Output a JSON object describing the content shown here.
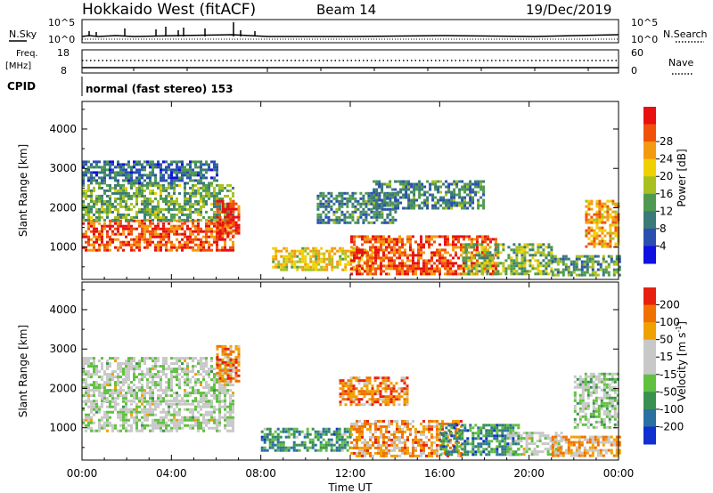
{
  "header": {
    "radar": "Hokkaido West (fitACF)",
    "beam": "Beam 14",
    "date": "19/Dec/2019"
  },
  "noise_panel": {
    "left_label": "N.Sky",
    "right_label": "N.Search",
    "tick_top": "10^5",
    "tick_bottom": "10^0"
  },
  "freq_panel": {
    "left_label_line1": "Freq.",
    "left_label_line2": "[MHz]",
    "left_tick_top": "18",
    "left_tick_bottom": "8",
    "right_label": "Nave",
    "right_tick_top": "60",
    "right_tick_bottom": "0"
  },
  "cpid": {
    "label": "CPID",
    "text": "normal (fast stereo) 153"
  },
  "x_axis": {
    "title": "Time UT",
    "ticks": [
      "00:00",
      "04:00",
      "08:00",
      "12:00",
      "16:00",
      "20:00",
      "00:00"
    ]
  },
  "chart_data": [
    {
      "type": "heatmap",
      "name": "power",
      "ylabel": "Slant Range [km]",
      "ylim": [
        180,
        4700
      ],
      "yticks": [
        1000,
        2000,
        3000,
        4000
      ],
      "x_range_hours": [
        0,
        24
      ],
      "colorbar": {
        "label": "Power [dB]",
        "ticks": [
          "4",
          "8",
          "12",
          "16",
          "20",
          "24",
          "28"
        ],
        "colors": [
          "#1010e0",
          "#2a4fb0",
          "#3a7a78",
          "#4f9a50",
          "#a8c020",
          "#f0d000",
          "#f49a10",
          "#f05008",
          "#e81010"
        ]
      },
      "regions": [
        {
          "t0": 0.0,
          "t1": 6.8,
          "r0": 900,
          "r1": 1700,
          "level": 0.85
        },
        {
          "t0": 0.0,
          "t1": 6.8,
          "r0": 1700,
          "r1": 2600,
          "level": 0.4
        },
        {
          "t0": 0.0,
          "t1": 6.0,
          "r0": 2600,
          "r1": 3200,
          "level": 0.25
        },
        {
          "t0": 6.0,
          "t1": 7.0,
          "r0": 1300,
          "r1": 2200,
          "level": 0.9
        },
        {
          "t0": 8.5,
          "t1": 13.0,
          "r0": 400,
          "r1": 1000,
          "level": 0.6
        },
        {
          "t0": 10.5,
          "t1": 14.0,
          "r0": 1600,
          "r1": 2400,
          "level": 0.3
        },
        {
          "t0": 12.0,
          "t1": 18.5,
          "r0": 300,
          "r1": 1300,
          "level": 0.85
        },
        {
          "t0": 13.0,
          "t1": 18.0,
          "r0": 2000,
          "r1": 2700,
          "level": 0.3
        },
        {
          "t0": 17.0,
          "t1": 21.0,
          "r0": 300,
          "r1": 1100,
          "level": 0.45
        },
        {
          "t0": 21.0,
          "t1": 24.0,
          "r0": 300,
          "r1": 800,
          "level": 0.35
        },
        {
          "t0": 22.5,
          "t1": 24.0,
          "r0": 1000,
          "r1": 2200,
          "level": 0.7
        }
      ]
    },
    {
      "type": "heatmap",
      "name": "velocity",
      "ylabel": "Slant Range [km]",
      "ylim": [
        180,
        4700
      ],
      "yticks": [
        1000,
        2000,
        3000,
        4000
      ],
      "x_range_hours": [
        0,
        24
      ],
      "colorbar": {
        "label": "Velocity [m s^-1]",
        "label_main": "Velocity [m s",
        "label_sup": "-1",
        "label_end": "]",
        "ticks": [
          "200",
          "100",
          "50",
          "15",
          "-15",
          "-50",
          "-100",
          "-200"
        ],
        "colors": [
          "#1030d0",
          "#2a70a0",
          "#3a9050",
          "#60c040",
          "#c8c8c8",
          "#c8c8c8",
          "#f0a000",
          "#f07000",
          "#e82010"
        ]
      },
      "regions": [
        {
          "t0": 0.0,
          "t1": 6.8,
          "r0": 900,
          "r1": 1700,
          "level": 0.5
        },
        {
          "t0": 0.0,
          "t1": 6.8,
          "r0": 1700,
          "r1": 2800,
          "level": 0.5
        },
        {
          "t0": 6.0,
          "t1": 7.0,
          "r0": 2200,
          "r1": 3100,
          "level": 0.8
        },
        {
          "t0": 8.0,
          "t1": 12.0,
          "r0": 400,
          "r1": 1000,
          "level": 0.28
        },
        {
          "t0": 11.5,
          "t1": 14.5,
          "r0": 1600,
          "r1": 2300,
          "level": 0.8
        },
        {
          "t0": 12.0,
          "t1": 17.0,
          "r0": 300,
          "r1": 1200,
          "level": 0.75
        },
        {
          "t0": 16.0,
          "t1": 19.5,
          "r0": 300,
          "r1": 1100,
          "level": 0.25
        },
        {
          "t0": 19.0,
          "t1": 21.5,
          "r0": 300,
          "r1": 900,
          "level": 0.5
        },
        {
          "t0": 21.0,
          "t1": 24.0,
          "r0": 300,
          "r1": 800,
          "level": 0.7
        },
        {
          "t0": 22.0,
          "t1": 24.0,
          "r0": 1000,
          "r1": 2400,
          "level": 0.45
        }
      ]
    }
  ]
}
